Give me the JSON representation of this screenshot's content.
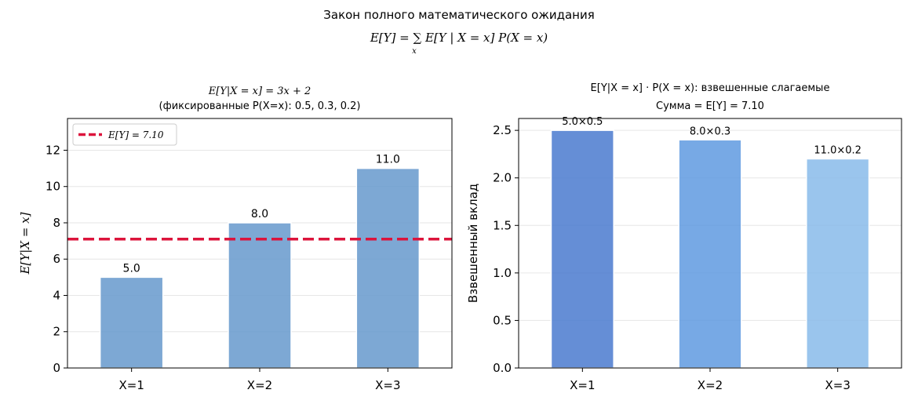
{
  "suptitle": {
    "line1": "Закон полного математического ожидания",
    "line2": "E[Y] = ∑ E[Y | X = x] P(X = x)",
    "sum_index": "x"
  },
  "chart_data": [
    {
      "type": "bar",
      "title_line1": "E[Y|X = x] = 3x + 2",
      "title_line2": "(фиксированные P(X=x): 0.5, 0.3, 0.2)",
      "xlabel": "",
      "ylabel": "E[Y|X = x]",
      "categories": [
        "X=1",
        "X=2",
        "X=3"
      ],
      "values": [
        5.0,
        8.0,
        11.0
      ],
      "data_labels": [
        "5.0",
        "8.0",
        "11.0"
      ],
      "ylim": [
        0,
        13.75
      ],
      "yticks": [
        0,
        2,
        4,
        6,
        8,
        10,
        12
      ],
      "ytick_labels": [
        "0",
        "2",
        "4",
        "6",
        "8",
        "10",
        "12"
      ],
      "grid": "y",
      "bar_color": "#6699cc",
      "reference_line": {
        "value": 7.1,
        "label": "E[Y] = 7.10",
        "color": "#dc143c",
        "style": "dashed"
      },
      "legend": {
        "placement": "top-left",
        "entries": [
          "E[Y] = 7.10"
        ]
      }
    },
    {
      "type": "bar",
      "title_line1": "E[Y|X = x] · P(X = x): взвешенные слагаемые",
      "title_line2": "Сумма = E[Y] = 7.10",
      "xlabel": "",
      "ylabel": "Взвешенный вклад",
      "categories": [
        "X=1",
        "X=2",
        "X=3"
      ],
      "values": [
        2.5,
        2.4,
        2.2
      ],
      "data_labels": [
        "5.0×0.5",
        "8.0×0.3",
        "11.0×0.2"
      ],
      "ylim": [
        0,
        2.625
      ],
      "yticks": [
        0.0,
        0.5,
        1.0,
        1.5,
        2.0,
        2.5
      ],
      "ytick_labels": [
        "0.0",
        "0.5",
        "1.0",
        "1.5",
        "2.0",
        "2.5"
      ],
      "grid": "y",
      "bar_colors": [
        "#4a7acf",
        "#5f9ae0",
        "#88bbea"
      ],
      "legend": null
    }
  ]
}
